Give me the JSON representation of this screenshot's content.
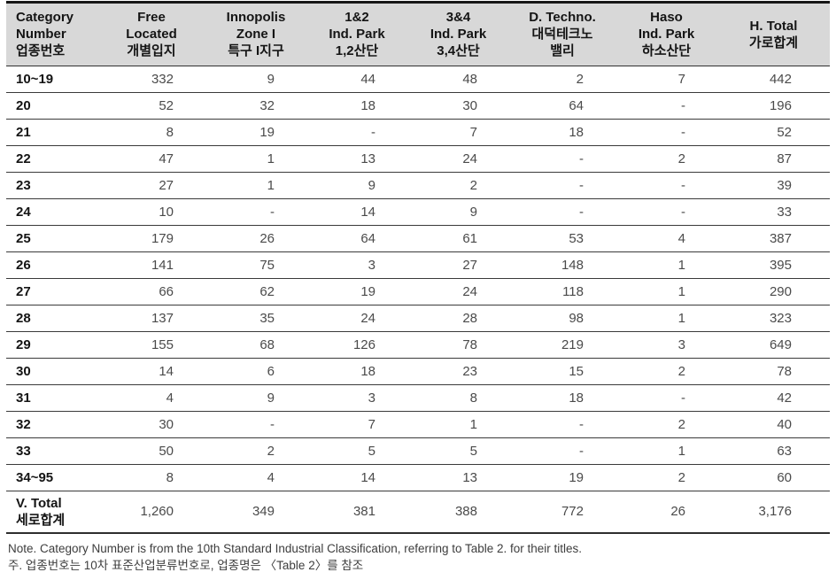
{
  "table": {
    "headers": [
      "Category\nNumber\n업종번호",
      "Free\nLocated\n개별입지",
      "Innopolis\nZone I\n특구 I지구",
      "1&2\nInd. Park\n1,2산단",
      "3&4\nInd. Park\n3,4산단",
      "D. Techno.\n대덕테크노\n밸리",
      "Haso\nInd. Park\n하소산단",
      "H. Total\n가로합계"
    ],
    "rows": [
      {
        "label": "10~19",
        "is_total": false,
        "values": [
          "332",
          "9",
          "44",
          "48",
          "2",
          "7",
          "442"
        ]
      },
      {
        "label": "20",
        "is_total": false,
        "values": [
          "52",
          "32",
          "18",
          "30",
          "64",
          "-",
          "196"
        ]
      },
      {
        "label": "21",
        "is_total": false,
        "values": [
          "8",
          "19",
          "-",
          "7",
          "18",
          "-",
          "52"
        ]
      },
      {
        "label": "22",
        "is_total": false,
        "values": [
          "47",
          "1",
          "13",
          "24",
          "-",
          "2",
          "87"
        ]
      },
      {
        "label": "23",
        "is_total": false,
        "values": [
          "27",
          "1",
          "9",
          "2",
          "-",
          "-",
          "39"
        ]
      },
      {
        "label": "24",
        "is_total": false,
        "values": [
          "10",
          "-",
          "14",
          "9",
          "-",
          "-",
          "33"
        ]
      },
      {
        "label": "25",
        "is_total": false,
        "values": [
          "179",
          "26",
          "64",
          "61",
          "53",
          "4",
          "387"
        ]
      },
      {
        "label": "26",
        "is_total": false,
        "values": [
          "141",
          "75",
          "3",
          "27",
          "148",
          "1",
          "395"
        ]
      },
      {
        "label": "27",
        "is_total": false,
        "values": [
          "66",
          "62",
          "19",
          "24",
          "118",
          "1",
          "290"
        ]
      },
      {
        "label": "28",
        "is_total": false,
        "values": [
          "137",
          "35",
          "24",
          "28",
          "98",
          "1",
          "323"
        ]
      },
      {
        "label": "29",
        "is_total": false,
        "values": [
          "155",
          "68",
          "126",
          "78",
          "219",
          "3",
          "649"
        ]
      },
      {
        "label": "30",
        "is_total": false,
        "values": [
          "14",
          "6",
          "18",
          "23",
          "15",
          "2",
          "78"
        ]
      },
      {
        "label": "31",
        "is_total": false,
        "values": [
          "4",
          "9",
          "3",
          "8",
          "18",
          "-",
          "42"
        ]
      },
      {
        "label": "32",
        "is_total": false,
        "values": [
          "30",
          "-",
          "7",
          "1",
          "-",
          "2",
          "40"
        ]
      },
      {
        "label": "33",
        "is_total": false,
        "values": [
          "50",
          "2",
          "5",
          "5",
          "-",
          "1",
          "63"
        ]
      },
      {
        "label": "34~95",
        "is_total": false,
        "values": [
          "8",
          "4",
          "14",
          "13",
          "19",
          "2",
          "60"
        ]
      },
      {
        "label": "V. Total\n세로합계",
        "is_total": true,
        "values": [
          "1,260",
          "349",
          "381",
          "388",
          "772",
          "26",
          "3,176"
        ]
      }
    ]
  },
  "notes": {
    "english": "Note. Category Number is from the 10th Standard Industrial Classification, referring to Table 2. for their titles.",
    "korean": "주. 업종번호는 10차 표준산업분류번호로, 업종명은 〈Table 2〉를 참조"
  },
  "colors": {
    "header_background": "#d8d8d8",
    "top_border": "#161616",
    "row_line": "#3a3a3a",
    "label_text": "#141414",
    "value_text": "#4a4a4a"
  }
}
